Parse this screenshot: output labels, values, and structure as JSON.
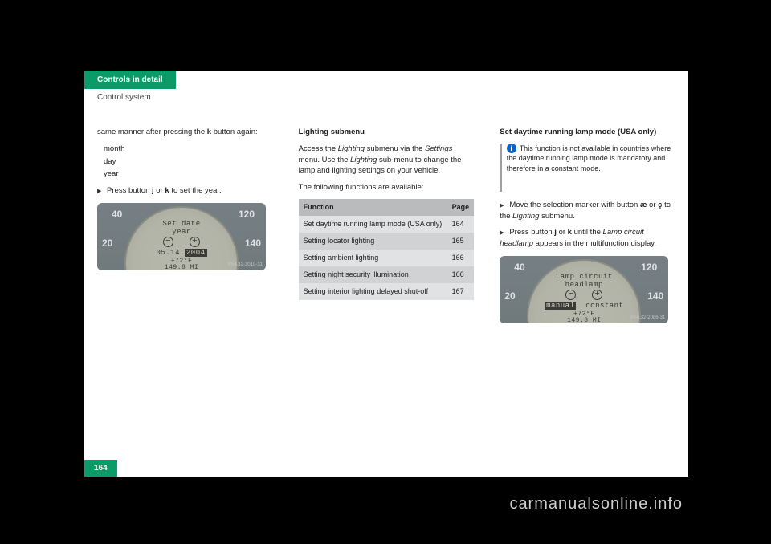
{
  "pageNumber": "164",
  "tab": "Controls in detail",
  "subtitle": "Control system",
  "watermark": "carmanualsonline.info",
  "col1": {
    "intro": "same manner after pressing the",
    "introBtn": "k",
    "introCont": "button again:",
    "bullets": [
      "month",
      "day",
      "year"
    ],
    "p2a": "Press button",
    "p2btn1": "j",
    "p2mid": "or",
    "p2btn2": "k",
    "p2b": "to set the year.",
    "gauge": {
      "line1": "Set date",
      "line2": "year",
      "line3pre": "05.14.",
      "line3hl": "2004",
      "temp": "+72°F",
      "miles": "149.8 MI",
      "ref": "P54.32-3010-31",
      "ticks": {
        "tl40": "40",
        "tl20": "20",
        "tl120": "120",
        "tl140": "140"
      }
    }
  },
  "col2": {
    "heading": "Lighting submenu",
    "p1a": "Access the",
    "p1i": "Lighting",
    "p1b": "submenu via the",
    "p1i2": "Settings",
    "p1c": "menu. Use the",
    "p1i3": "Lighting",
    "p1d": "sub-menu to change the lamp and lighting settings on your vehicle.",
    "p2": "The following functions are available:",
    "table": {
      "hFunc": "Function",
      "hPage": "Page",
      "rows": [
        {
          "f": "Set daytime running lamp mode (USA only)",
          "p": "164"
        },
        {
          "f": "Setting locator lighting",
          "p": "165"
        },
        {
          "f": "Setting ambient lighting",
          "p": "166"
        },
        {
          "f": "Setting night security illumination",
          "p": "166"
        },
        {
          "f": "Setting interior lighting delayed shut-off",
          "p": "167"
        }
      ]
    }
  },
  "col3": {
    "heading": "Set daytime running lamp mode (USA only)",
    "info": "This function is not available in countries where the daytime running lamp mode is mandatory and therefore in a constant mode.",
    "li1a": "Move the selection marker with button",
    "li1btn1": "æ",
    "li1mid": "or",
    "li1btn2": "ç",
    "li1b": "to the",
    "li1i": "Lighting",
    "li1c": "submenu.",
    "li2a": "Press button",
    "li2btn1": "j",
    "li2mid": "or",
    "li2btn2": "k",
    "li2b": "until the",
    "li2i": "Lamp circuit headlamp",
    "li2c": "appears in the multifunction display.",
    "gauge": {
      "line1": "Lamp circuit",
      "line2": "headlamp",
      "opt1": "manual",
      "opt2": "constant",
      "temp": "+72°F",
      "miles": "149.8 MI",
      "ref": "P54.32-2086-31",
      "ticks": {
        "tl40": "40",
        "tl20": "20",
        "tl120": "120",
        "tl140": "140"
      }
    }
  }
}
